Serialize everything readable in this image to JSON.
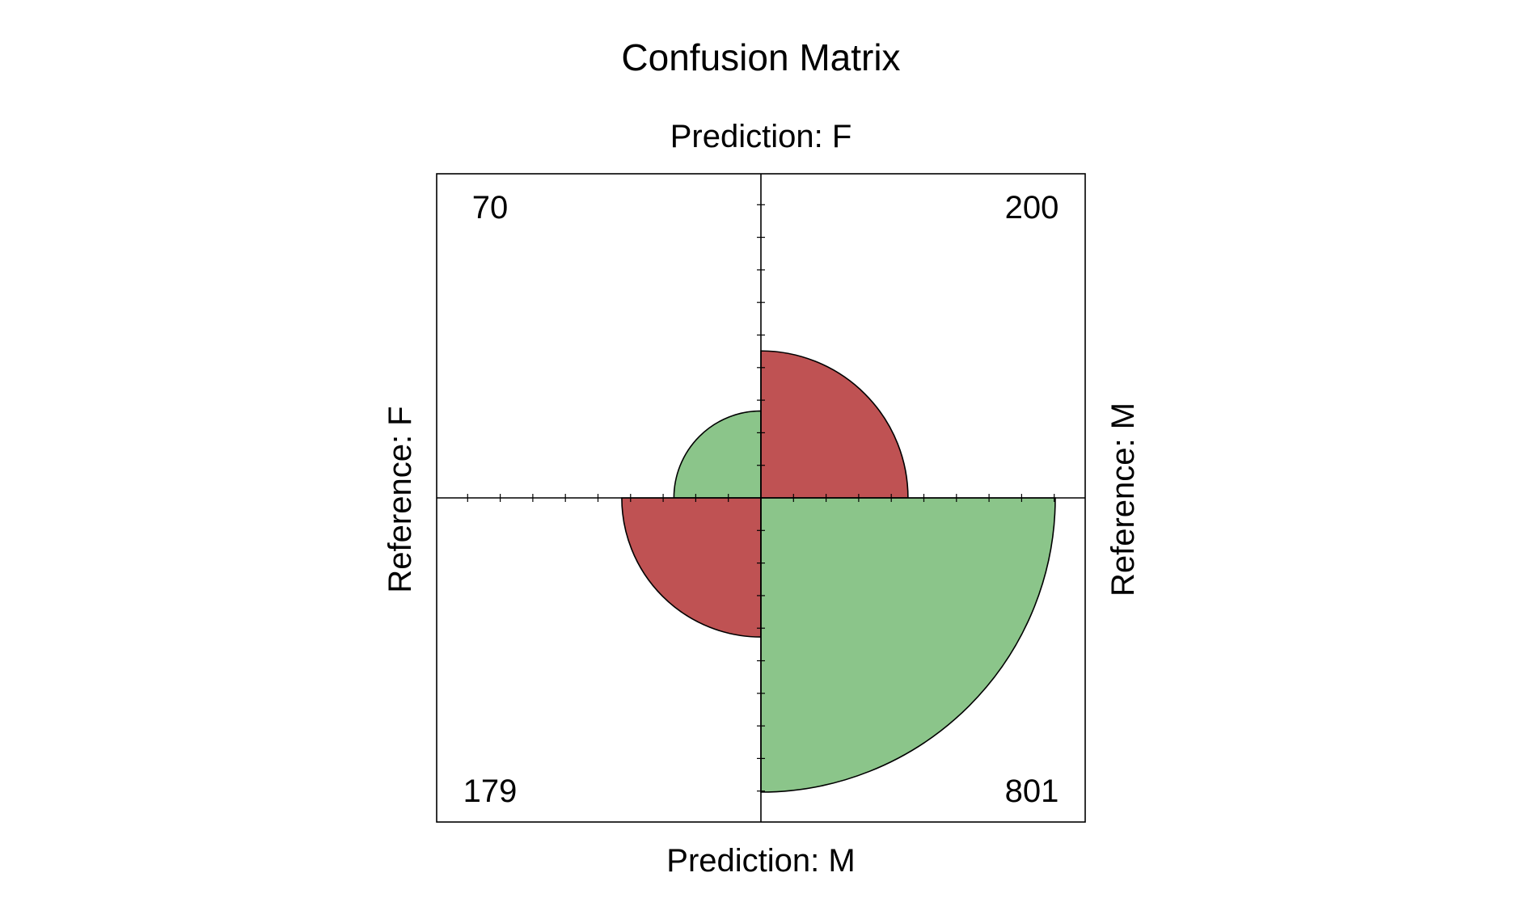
{
  "chart_data": {
    "type": "fourfold",
    "title": "Confusion Matrix",
    "labels": {
      "top": "Prediction: F",
      "bottom": "Prediction: M",
      "left": "Reference: F",
      "right": "Reference: M"
    },
    "cells": [
      {
        "position": "top-left",
        "label": "70",
        "value": 70,
        "color": "#8bc58a"
      },
      {
        "position": "top-right",
        "label": "200",
        "value": 200,
        "color": "#bf5253"
      },
      {
        "position": "bottom-left",
        "label": "179",
        "value": 179,
        "color": "#bf5253"
      },
      {
        "position": "bottom-right",
        "label": "801",
        "value": 801,
        "color": "#8bc58a"
      }
    ],
    "colors": {
      "correct": "#8bc58a",
      "incorrect": "#bf5253",
      "outline": "#000000"
    },
    "std": "ind.max",
    "axis_ticks": true
  }
}
